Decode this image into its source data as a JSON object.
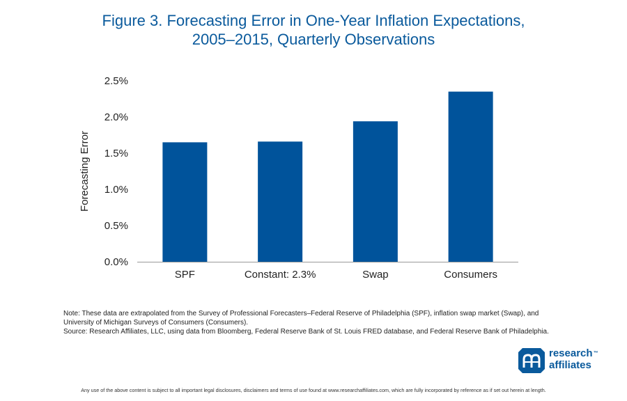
{
  "title": {
    "line1": "Figure 3. Forecasting Error in One-Year Inflation Expectations,",
    "line2": "2005–2015, Quarterly Observations"
  },
  "chart_data": {
    "type": "bar",
    "categories": [
      "SPF",
      "Constant: 2.3%",
      "Swap",
      "Consumers"
    ],
    "values": [
      1.65,
      1.66,
      1.94,
      2.35
    ],
    "ylabel": "Forecasting Error",
    "ylim": [
      0,
      2.5
    ],
    "yticks": [
      "0.0%",
      "0.5%",
      "1.0%",
      "1.5%",
      "2.0%",
      "2.5%"
    ],
    "grid": false,
    "bar_color": "#00539b"
  },
  "notes": {
    "line1": "Note: These data are extrapolated from the Survey of Professional Forecasters–Federal Reserve of Philadelphia (SPF), inflation swap market (Swap), and",
    "line2": "University of Michigan Surveys of Consumers (Consumers).",
    "line3": "Source: Research Affiliates, LLC, using data from Bloomberg, Federal Reserve Bank of St. Louis FRED database, and Federal Reserve Bank of Philadelphia."
  },
  "logo": {
    "line1": "research",
    "line2": "affiliates",
    "trademark": "™",
    "color": "#0a5a9c"
  },
  "disclaimer": "Any use of the above content is subject to all important legal disclosures, disclaimers and terms of use found at www.researchaffiliates.com, which are fully incorporated by reference as if set out herein at length."
}
